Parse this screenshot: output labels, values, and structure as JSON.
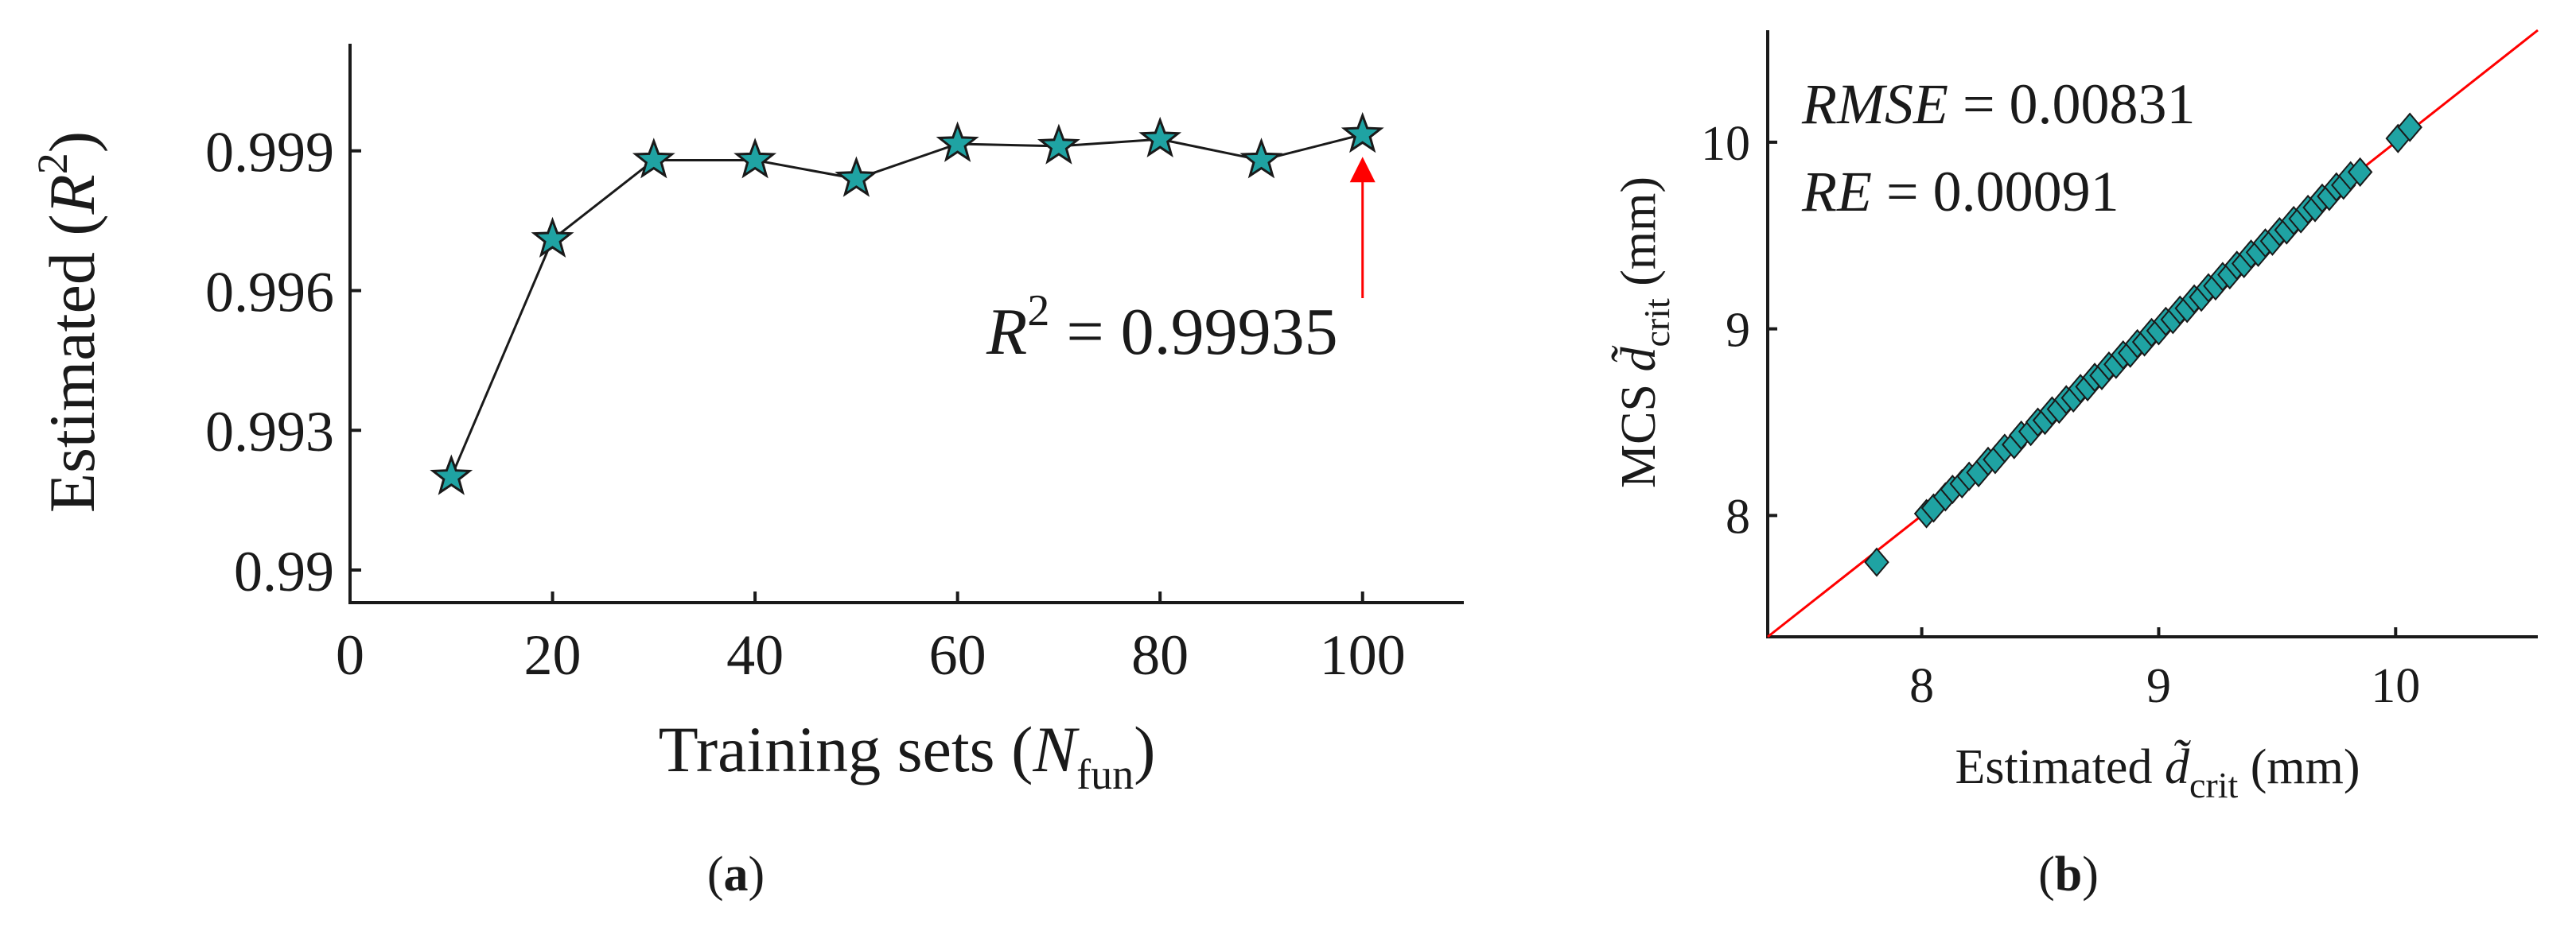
{
  "panels": {
    "a_label": "(a)",
    "b_label": "(b)"
  },
  "chart_data": [
    {
      "type": "line",
      "panel": "a",
      "xlabel": "Training sets (N_fun)",
      "ylabel": "Estimated (R^2)",
      "xlim": [
        0,
        110
      ],
      "ylim": [
        0.9893,
        1.0013
      ],
      "xticks": [
        0,
        20,
        40,
        60,
        80,
        100
      ],
      "yticks": [
        0.99,
        0.993,
        0.996,
        0.999
      ],
      "ytick_labels": [
        "0.99",
        "0.993",
        "0.996",
        "0.999"
      ],
      "grid": false,
      "marker": "star",
      "marker_color": "#1fa3a3",
      "line_color": "#1a1a1a",
      "x": [
        10,
        20,
        30,
        40,
        50,
        60,
        70,
        80,
        90,
        100
      ],
      "y": [
        0.992,
        0.9971,
        0.9988,
        0.9988,
        0.9984,
        0.99915,
        0.9991,
        0.99925,
        0.9988,
        0.99935
      ],
      "annotation": {
        "text": "R^2 = 0.99935",
        "target_x": 100,
        "target_y": 0.99935,
        "arrow_color": "#ff0000"
      }
    },
    {
      "type": "scatter",
      "panel": "b",
      "xlabel": "Estimated d̃_crit (mm)",
      "ylabel": "MCS d̃_crit (mm)",
      "xlim": [
        7.35,
        10.6
      ],
      "ylim": [
        7.35,
        10.6
      ],
      "xticks": [
        8,
        9,
        10
      ],
      "yticks": [
        8,
        9,
        10
      ],
      "grid": false,
      "marker": "diamond",
      "marker_color": "#1fa3a3",
      "reference_line": {
        "from": [
          7.35,
          7.35
        ],
        "to": [
          10.6,
          10.6
        ],
        "color": "#ff0000"
      },
      "annotations": [
        "RMSE = 0.00831",
        "RE = 0.00091"
      ],
      "x": [
        7.81,
        8.02,
        8.05,
        8.1,
        8.13,
        8.17,
        8.2,
        8.24,
        8.28,
        8.31,
        8.35,
        8.39,
        8.42,
        8.46,
        8.49,
        8.52,
        8.55,
        8.58,
        8.61,
        8.64,
        8.67,
        8.7,
        8.73,
        8.76,
        8.79,
        8.82,
        8.85,
        8.88,
        8.91,
        8.94,
        8.97,
        9.0,
        9.03,
        9.06,
        9.09,
        9.12,
        9.15,
        9.18,
        9.21,
        9.24,
        9.27,
        9.3,
        9.33,
        9.36,
        9.39,
        9.42,
        9.45,
        9.48,
        9.51,
        9.54,
        9.57,
        9.6,
        9.63,
        9.66,
        9.69,
        9.72,
        9.75,
        9.78,
        9.81,
        9.85,
        10.01,
        10.06
      ],
      "y": [
        7.75,
        8.01,
        8.04,
        8.1,
        8.14,
        8.17,
        8.21,
        8.23,
        8.29,
        8.3,
        8.36,
        8.38,
        8.43,
        8.45,
        8.5,
        8.51,
        8.56,
        8.57,
        8.62,
        8.63,
        8.68,
        8.69,
        8.74,
        8.75,
        8.8,
        8.81,
        8.86,
        8.87,
        8.92,
        8.93,
        8.98,
        8.99,
        9.04,
        9.05,
        9.1,
        9.11,
        9.16,
        9.17,
        9.22,
        9.23,
        9.28,
        9.29,
        9.34,
        9.35,
        9.4,
        9.41,
        9.46,
        9.47,
        9.52,
        9.53,
        9.58,
        9.59,
        9.64,
        9.65,
        9.7,
        9.71,
        9.76,
        9.77,
        9.82,
        9.84,
        10.02,
        10.08
      ]
    }
  ]
}
